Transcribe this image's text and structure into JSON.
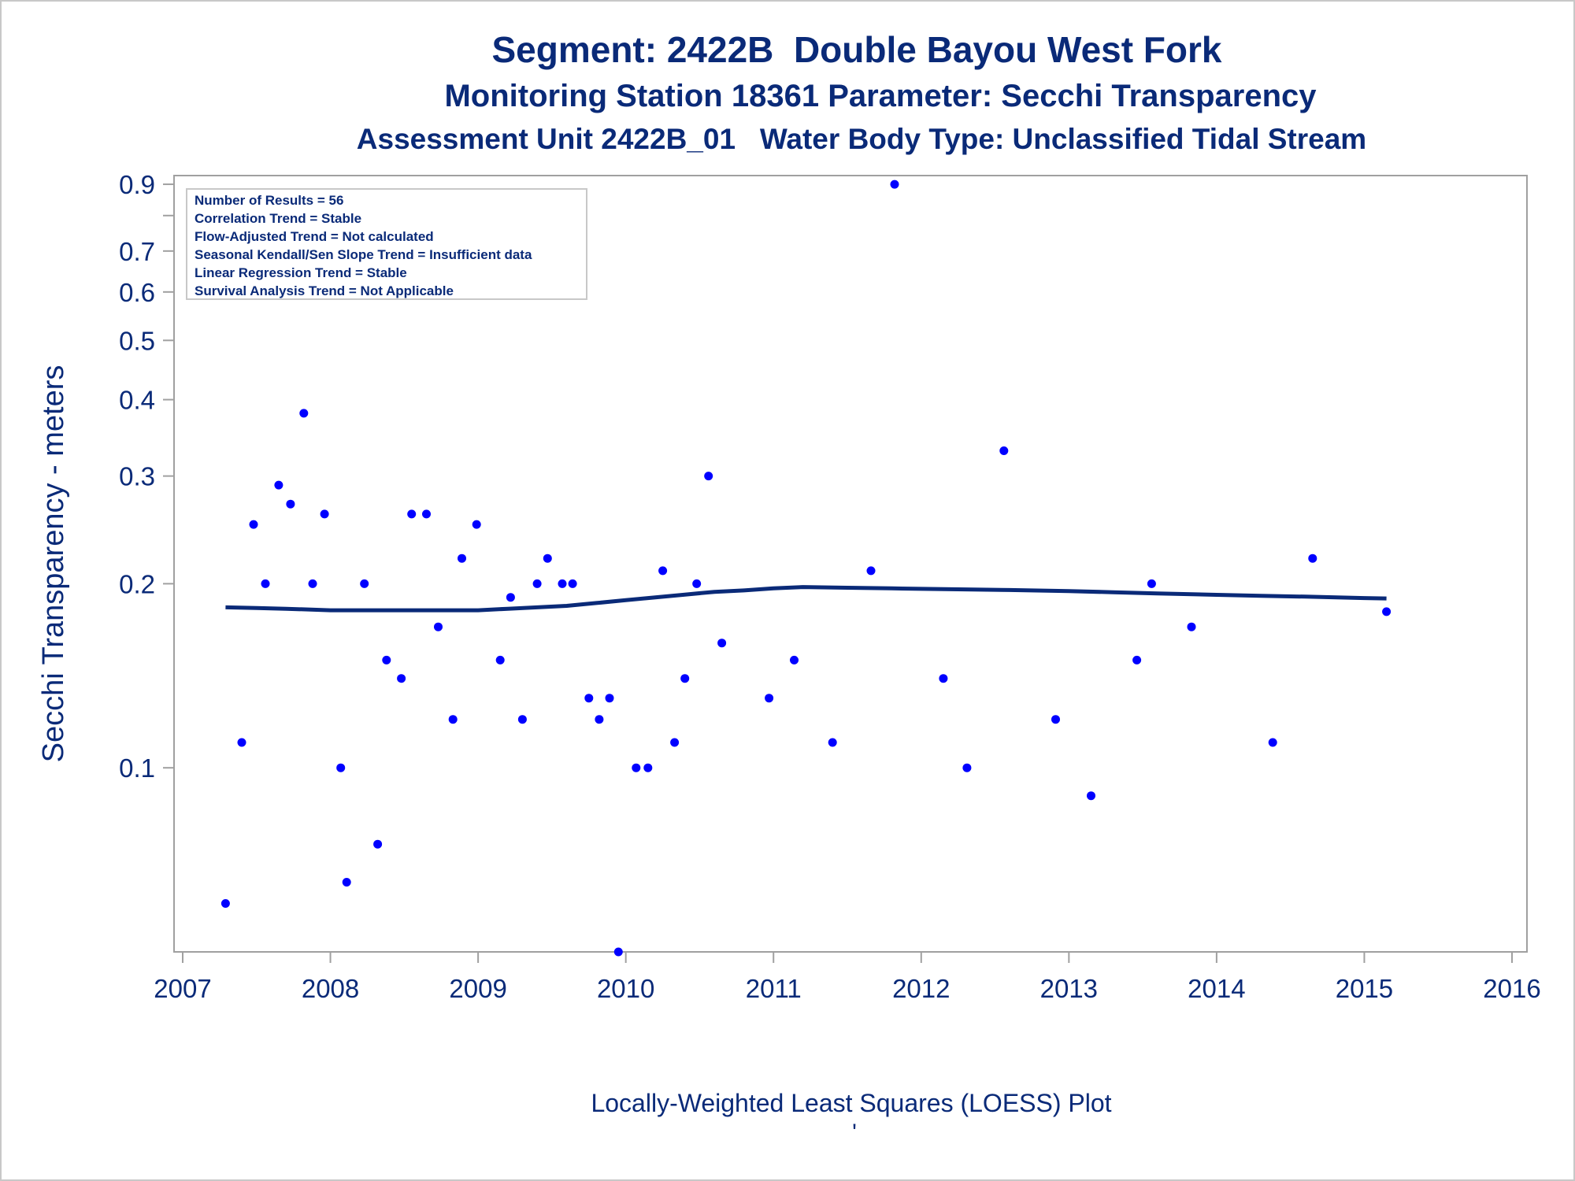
{
  "titles": {
    "line1": "Segment: 2422B  Double Bayou West Fork",
    "line2": "Monitoring Station 18361 Parameter: Secchi Transparency",
    "line3": "Assessment Unit 2422B_01   Water Body Type: Unclassified Tidal Stream"
  },
  "stats_box": [
    "Number of Results = 56",
    "Correlation Trend = Stable",
    "Flow-Adjusted Trend = Not calculated",
    "Seasonal Kendall/Sen Slope Trend = Insufficient data",
    "Linear Regression Trend = Stable",
    "Survival Analysis Trend = Not Applicable"
  ],
  "footer_note": "'",
  "colors": {
    "text": "#0a2a78",
    "points": "#0000ff",
    "loess": "#0a2a78",
    "frame": "#a0a0a0"
  },
  "chart_data": {
    "type": "scatter",
    "xlabel": "Locally-Weighted Least Squares (LOESS) Plot",
    "ylabel": "Secchi Transparency - meters",
    "y_scale": "log",
    "xlim": [
      2007,
      2016
    ],
    "ylim": [
      0.05,
      0.93
    ],
    "x_ticks": [
      2007,
      2008,
      2009,
      2010,
      2011,
      2012,
      2013,
      2014,
      2015,
      2016
    ],
    "x_tick_labels": [
      "2007",
      "2008",
      "2009",
      "2010",
      "2011",
      "2012",
      "2013",
      "2014",
      "2015",
      "2016"
    ],
    "y_ticks": [
      0.1,
      0.2,
      0.3,
      0.4,
      0.5,
      0.6,
      0.7,
      0.9
    ],
    "y_tick_labels": [
      "0.1",
      "0.2",
      "0.3",
      "0.4",
      "0.5",
      "0.6",
      "0.7",
      "0.9"
    ],
    "y_minor_ticks": [
      0.8
    ],
    "series": [
      {
        "type": "scatter",
        "x": [
          2007.29,
          2007.4,
          2007.48,
          2007.56,
          2007.65,
          2007.73,
          2007.82,
          2007.88,
          2007.96,
          2008.07,
          2008.11,
          2008.23,
          2008.32,
          2008.38,
          2008.48,
          2008.55,
          2008.65,
          2008.73,
          2008.83,
          2008.89,
          2008.99,
          2009.15,
          2009.22,
          2009.3,
          2009.4,
          2009.47,
          2009.57,
          2009.64,
          2009.75,
          2009.82,
          2009.89,
          2009.95,
          2010.07,
          2010.15,
          2010.25,
          2010.33,
          2010.4,
          2010.48,
          2010.56,
          2010.65,
          2010.97,
          2011.14,
          2011.4,
          2011.66,
          2011.82,
          2012.15,
          2012.31,
          2012.56,
          2012.91,
          2013.15,
          2013.46,
          2013.56,
          2013.83,
          2014.38,
          2014.65,
          2015.15
        ],
        "y": [
          0.06,
          0.11,
          0.25,
          0.2,
          0.29,
          0.27,
          0.38,
          0.2,
          0.26,
          0.1,
          0.065,
          0.2,
          0.075,
          0.15,
          0.14,
          0.26,
          0.26,
          0.17,
          0.12,
          0.22,
          0.25,
          0.15,
          0.19,
          0.12,
          0.2,
          0.22,
          0.2,
          0.2,
          0.13,
          0.12,
          0.13,
          0.05,
          0.1,
          0.1,
          0.21,
          0.11,
          0.14,
          0.2,
          0.3,
          0.16,
          0.13,
          0.15,
          0.11,
          0.21,
          0.9,
          0.14,
          0.1,
          0.33,
          0.12,
          0.09,
          0.15,
          0.2,
          0.17,
          0.11,
          0.22,
          0.18
        ]
      },
      {
        "type": "line",
        "x": [
          2007.29,
          2007.5,
          2007.7,
          2008.0,
          2008.3,
          2008.7,
          2009.0,
          2009.2,
          2009.4,
          2009.6,
          2009.8,
          2010.0,
          2010.2,
          2010.4,
          2010.6,
          2010.8,
          2011.0,
          2011.2,
          2011.5,
          2011.8,
          2012.0,
          2012.3,
          2012.6,
          2013.0,
          2013.3,
          2013.6,
          2014.0,
          2014.3,
          2014.6,
          2015.0,
          2015.15
        ],
        "y": [
          0.183,
          0.1825,
          0.182,
          0.181,
          0.181,
          0.181,
          0.181,
          0.182,
          0.183,
          0.184,
          0.186,
          0.188,
          0.19,
          0.192,
          0.194,
          0.195,
          0.1965,
          0.1975,
          0.197,
          0.1965,
          0.1962,
          0.1958,
          0.1953,
          0.1945,
          0.1937,
          0.1928,
          0.1918,
          0.1911,
          0.1905,
          0.1895,
          0.1892
        ]
      }
    ]
  }
}
